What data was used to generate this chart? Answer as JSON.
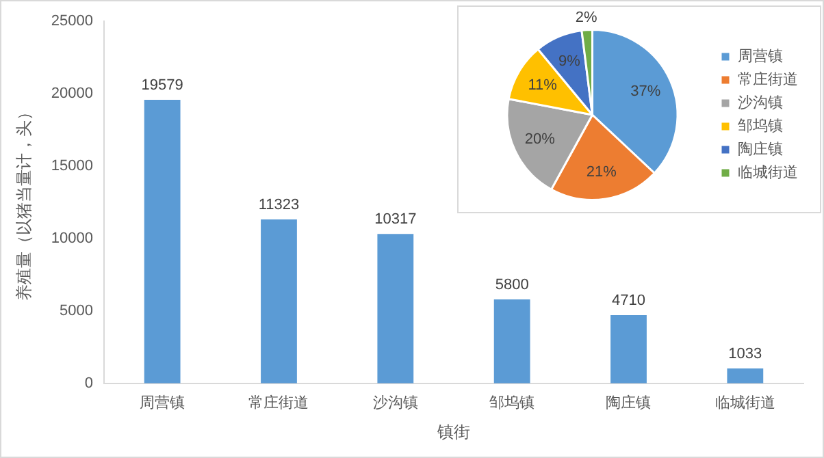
{
  "chart_data": [
    {
      "type": "bar",
      "xlabel": "镇街",
      "ylabel": "养殖量（以猪当量计，头）",
      "categories": [
        "周营镇",
        "常庄街道",
        "沙沟镇",
        "邹坞镇",
        "陶庄镇",
        "临城街道"
      ],
      "values": [
        19579,
        11323,
        10317,
        5800,
        4710,
        1033
      ],
      "color": "#5b9bd5",
      "ylim": [
        0,
        25000
      ],
      "yticks": [
        0,
        5000,
        10000,
        15000,
        20000,
        25000
      ],
      "grid": false,
      "data_labels": true,
      "legend": false
    },
    {
      "type": "pie",
      "categories": [
        "周营镇",
        "常庄街道",
        "沙沟镇",
        "邹坞镇",
        "陶庄镇",
        "临城街道"
      ],
      "values": [
        37,
        21,
        20,
        11,
        9,
        2
      ],
      "colors": [
        "#5b9bd5",
        "#ed7d31",
        "#a5a5a5",
        "#ffc000",
        "#4472c4",
        "#70ad47"
      ],
      "value_labels": [
        "37%",
        "21%",
        "20%",
        "11%",
        "9%",
        "2%"
      ],
      "legend": "right"
    }
  ]
}
